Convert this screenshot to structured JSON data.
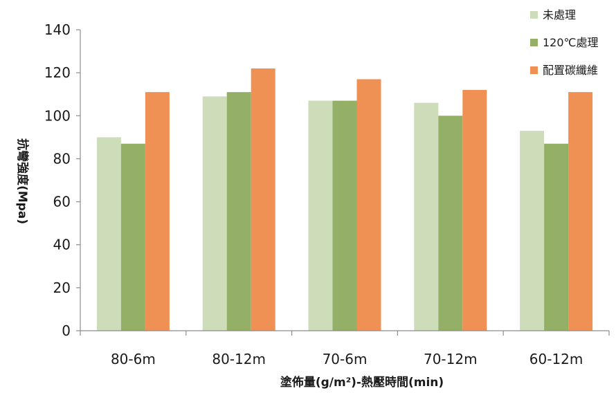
{
  "chart_data": {
    "type": "bar",
    "categories": [
      "80-6m",
      "80-12m",
      "70-6m",
      "70-12m",
      "60-12m"
    ],
    "series": [
      {
        "name": "未處理",
        "color": "#cddcb9",
        "values": [
          90,
          109,
          107,
          106,
          93
        ]
      },
      {
        "name": "120℃處理",
        "color": "#93b066",
        "values": [
          87,
          111,
          107,
          100,
          87
        ]
      },
      {
        "name": "配置碳纖維",
        "color": "#ef9154",
        "values": [
          111,
          122,
          117,
          112,
          111
        ]
      }
    ],
    "ylabel": "抗彎強度(Mpa)",
    "xlabel": "塗佈量(g/m²)-熱壓時間(min)",
    "ylim": [
      0,
      140
    ],
    "yticks": [
      0,
      20,
      40,
      60,
      80,
      100,
      120,
      140
    ],
    "grid": false,
    "legend_position": "top-right"
  }
}
